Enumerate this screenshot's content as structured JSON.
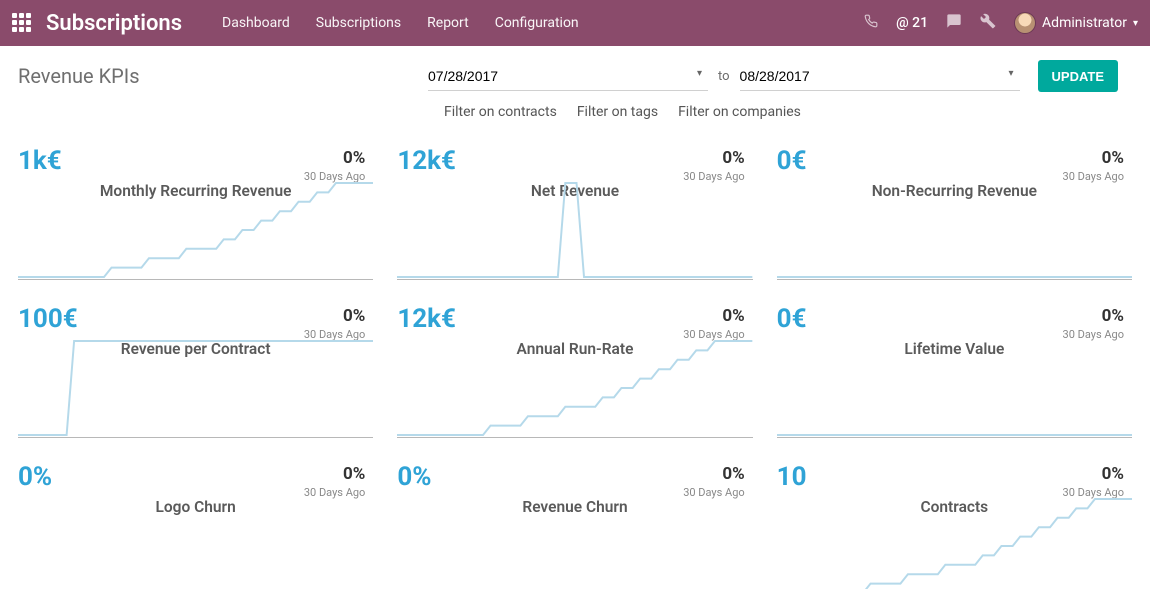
{
  "colors": {
    "navbar": "#8a4b6b",
    "accent": "#2fa3d6",
    "sparkline": "#b5d9ea",
    "update_btn": "#00a99d"
  },
  "topbar": {
    "app_title": "Subscriptions",
    "nav": {
      "dashboard": "Dashboard",
      "subscriptions": "Subscriptions",
      "report": "Report",
      "configuration": "Configuration"
    },
    "at_count": "@ 21",
    "user_name": "Administrator"
  },
  "controls": {
    "page_title": "Revenue KPIs",
    "date_from": "07/28/2017",
    "to_label": "to",
    "date_to": "08/28/2017",
    "update_label": "UPDATE"
  },
  "filters": {
    "contracts": "Filter on contracts",
    "tags": "Filter on tags",
    "companies": "Filter on companies"
  },
  "kpis": [
    {
      "value": "1k€",
      "title": "Monthly Recurring Revenue",
      "pct": "0%",
      "ago": "30 Days Ago",
      "spark": {
        "type": "line",
        "color": "#b5d9ea",
        "width": 2,
        "points": [
          0,
          0,
          0,
          0,
          0,
          1,
          1,
          2,
          2,
          3,
          3,
          4,
          5,
          6,
          7,
          8,
          9,
          10,
          10,
          10
        ],
        "ylim": [
          0,
          10
        ]
      }
    },
    {
      "value": "12k€",
      "title": "Net Revenue",
      "pct": "0%",
      "ago": "30 Days Ago",
      "spark": {
        "type": "line",
        "color": "#b5d9ea",
        "width": 2,
        "points": [
          0,
          0,
          0,
          0,
          0,
          0,
          0,
          0,
          0,
          10,
          0,
          0,
          0,
          0,
          0,
          0,
          0,
          0,
          0,
          0
        ],
        "ylim": [
          0,
          10
        ]
      }
    },
    {
      "value": "0€",
      "title": "Non-Recurring Revenue",
      "pct": "0%",
      "ago": "30 Days Ago",
      "spark": {
        "type": "line",
        "color": "#b5d9ea",
        "width": 2,
        "points": [
          0,
          0,
          0,
          0,
          0,
          0,
          0,
          0,
          0,
          0,
          0,
          0,
          0,
          0,
          0,
          0,
          0,
          0,
          0,
          0
        ],
        "ylim": [
          0,
          10
        ]
      }
    },
    {
      "value": "100€",
      "title": "Revenue per Contract",
      "pct": "0%",
      "ago": "30 Days Ago",
      "spark": {
        "type": "line",
        "color": "#b5d9ea",
        "width": 2,
        "points": [
          0,
          0,
          0,
          10,
          10,
          10,
          10,
          10,
          10,
          10,
          10,
          10,
          10,
          10,
          10,
          10,
          10,
          10,
          10,
          10
        ],
        "ylim": [
          0,
          10
        ]
      }
    },
    {
      "value": "12k€",
      "title": "Annual Run-Rate",
      "pct": "0%",
      "ago": "30 Days Ago",
      "spark": {
        "type": "line",
        "color": "#b5d9ea",
        "width": 2,
        "points": [
          0,
          0,
          0,
          0,
          0,
          1,
          1,
          2,
          2,
          3,
          3,
          4,
          5,
          6,
          7,
          8,
          9,
          10,
          10,
          10
        ],
        "ylim": [
          0,
          10
        ]
      }
    },
    {
      "value": "0€",
      "title": "Lifetime Value",
      "pct": "0%",
      "ago": "30 Days Ago",
      "spark": {
        "type": "line",
        "color": "#b5d9ea",
        "width": 2,
        "points": [
          0,
          0,
          0,
          0,
          0,
          0,
          0,
          0,
          0,
          0,
          0,
          0,
          0,
          0,
          0,
          0,
          0,
          0,
          0,
          0
        ],
        "ylim": [
          0,
          10
        ]
      }
    },
    {
      "value": "0%",
      "title": "Logo Churn",
      "pct": "0%",
      "ago": "30 Days Ago",
      "spark": {
        "type": "line",
        "color": "#b5d9ea",
        "width": 2,
        "points": [
          0,
          0,
          0,
          0,
          0,
          0,
          0,
          0,
          0,
          0,
          0,
          0,
          0,
          0,
          0,
          0,
          0,
          0,
          0,
          0
        ],
        "ylim": [
          0,
          10
        ]
      }
    },
    {
      "value": "0%",
      "title": "Revenue Churn",
      "pct": "0%",
      "ago": "30 Days Ago",
      "spark": {
        "type": "line",
        "color": "#b5d9ea",
        "width": 2,
        "points": [
          0,
          0,
          0,
          0,
          0,
          0,
          0,
          0,
          0,
          0,
          0,
          0,
          0,
          0,
          0,
          0,
          0,
          0,
          0,
          0
        ],
        "ylim": [
          0,
          10
        ]
      }
    },
    {
      "value": "10",
      "title": "Contracts",
      "pct": "0%",
      "ago": "30 Days Ago",
      "spark": {
        "type": "line",
        "color": "#b5d9ea",
        "width": 2,
        "points": [
          0,
          0,
          0,
          0,
          0,
          1,
          1,
          2,
          2,
          3,
          3,
          4,
          5,
          6,
          7,
          8,
          9,
          10,
          10,
          10
        ],
        "ylim": [
          0,
          10
        ]
      }
    }
  ]
}
